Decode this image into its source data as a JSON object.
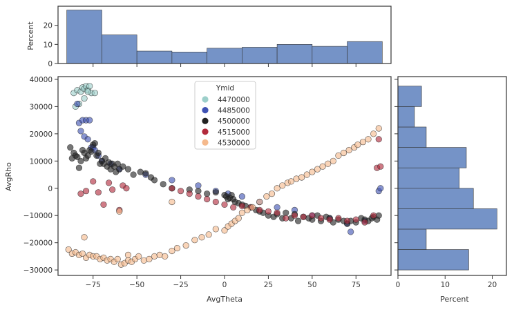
{
  "chart_data": {
    "type": "scatter",
    "joint": {
      "xlabel": "AvgTheta",
      "ylabel": "AvgRho",
      "xlim": [
        -95,
        95
      ],
      "ylim": [
        -32000,
        41000
      ],
      "xticks": [
        -75,
        -50,
        -25,
        0,
        25,
        50,
        75
      ],
      "yticks": [
        -30000,
        -20000,
        -10000,
        0,
        10000,
        20000,
        30000,
        40000
      ],
      "grid": false
    },
    "legend": {
      "title": "Ymid",
      "placement": "top-center",
      "entries": [
        {
          "label": "4470000",
          "color": "#9ccfca"
        },
        {
          "label": "4485000",
          "color": "#3f52b3"
        },
        {
          "label": "4500000",
          "color": "#222222"
        },
        {
          "label": "4515000",
          "color": "#b22a3c"
        },
        {
          "label": "4530000",
          "color": "#f5b98c"
        }
      ]
    },
    "series": [
      {
        "name": "4470000",
        "x": [
          -86,
          -84,
          -82,
          -81,
          -80,
          -79,
          -78,
          -77,
          -76,
          -74,
          -83,
          -85,
          -80,
          -78
        ],
        "y": [
          35000,
          36000,
          35500,
          37000,
          36500,
          37500,
          36000,
          37500,
          35000,
          35000,
          31000,
          30000,
          33000,
          35500
        ]
      },
      {
        "name": "4485000",
        "x": [
          -84,
          -83,
          -82,
          -81,
          -80,
          -79,
          -78,
          -77,
          -76,
          -75,
          -74,
          -72,
          -70,
          -65,
          -60,
          -45,
          -30,
          -15,
          -5,
          2,
          10,
          20,
          30,
          40,
          50,
          60,
          70,
          72,
          80,
          88,
          89
        ],
        "y": [
          31000,
          24000,
          21000,
          25000,
          19000,
          25000,
          18000,
          25000,
          15000,
          15000,
          14000,
          12000,
          10000,
          9000,
          7000,
          5000,
          3000,
          1000,
          -1000,
          -2000,
          -3000,
          -5000,
          -7000,
          -8000,
          -10000,
          -11000,
          -13000,
          -16000,
          -12000,
          -1000,
          0
        ]
      },
      {
        "name": "4500000",
        "x": [
          -88,
          -87,
          -86,
          -85,
          -84,
          -83,
          -82,
          -81,
          -80,
          -79,
          -78,
          -77,
          -76,
          -75,
          -74,
          -73,
          -72,
          -71,
          -70,
          -69,
          -68,
          -67,
          -66,
          -65,
          -64,
          -63,
          -62,
          -61,
          -60,
          -58,
          -55,
          -52,
          -48,
          -45,
          -42,
          -40,
          -35,
          -30,
          -20,
          -15,
          -10,
          -5,
          0,
          1,
          2,
          3,
          4,
          5,
          6,
          8,
          10,
          12,
          15,
          18,
          20,
          22,
          25,
          28,
          30,
          33,
          35,
          38,
          40,
          42,
          45,
          48,
          50,
          53,
          55,
          58,
          60,
          62,
          65,
          68,
          70,
          72,
          75,
          78,
          80,
          82,
          84,
          85,
          87,
          88
        ],
        "y": [
          15000,
          11000,
          13000,
          12000,
          11500,
          7500,
          10000,
          14000,
          13000,
          11000,
          12000,
          14000,
          13500,
          16000,
          16500,
          12000,
          13000,
          9000,
          10000,
          9000,
          11000,
          8000,
          9500,
          7000,
          9000,
          8000,
          6000,
          9000,
          7000,
          8000,
          7000,
          5000,
          6000,
          5500,
          4000,
          3000,
          1500,
          0,
          -500,
          -1000,
          -2000,
          -1500,
          -2500,
          -3000,
          -4000,
          -3500,
          -2500,
          -4000,
          -5000,
          -5500,
          -6000,
          -6500,
          -7000,
          -8000,
          -8500,
          -9000,
          -10000,
          -10500,
          -9500,
          -11000,
          -9000,
          -11000,
          -9500,
          -12000,
          -10500,
          -11000,
          -11500,
          -10000,
          -12000,
          -10500,
          -11000,
          -12500,
          -11500,
          -12000,
          -13000,
          -12000,
          -12500,
          -11000,
          -11500,
          -12000,
          -11000,
          -10500,
          -11500,
          -10000
        ]
      },
      {
        "name": "4515000",
        "x": [
          -82,
          -79,
          -75,
          -72,
          -69,
          -66,
          -64,
          -60,
          -58,
          -56,
          -30,
          -25,
          -20,
          -15,
          -10,
          -5,
          0,
          5,
          10,
          15,
          20,
          25,
          30,
          35,
          40,
          45,
          50,
          55,
          60,
          65,
          70,
          75,
          80,
          85,
          87,
          88,
          89
        ],
        "y": [
          -2000,
          -1000,
          2500,
          -1500,
          -6000,
          2000,
          -500,
          -8000,
          1000,
          0,
          0,
          -1000,
          -2000,
          -3000,
          -4000,
          -5000,
          -6000,
          -7000,
          -6500,
          -7000,
          -8000,
          -8500,
          -9000,
          -11000,
          -10000,
          -10500,
          -10000,
          -11000,
          -11500,
          -11000,
          -12000,
          -11500,
          -12500,
          -10000,
          7500,
          18000,
          8000
        ]
      },
      {
        "name": "4530000",
        "x": [
          -89,
          -87,
          -85,
          -83,
          -81,
          -79,
          -77,
          -75,
          -73,
          -71,
          -69,
          -67,
          -65,
          -63,
          -61,
          -59,
          -57,
          -55,
          -53,
          -51,
          -49,
          -46,
          -43,
          -40,
          -37,
          -34,
          -30,
          -27,
          -22,
          -17,
          -13,
          -9,
          -5,
          0,
          2,
          4,
          6,
          8,
          10,
          13,
          16,
          20,
          24,
          27,
          30,
          33,
          36,
          38,
          41,
          44,
          47,
          50,
          53,
          56,
          59,
          62,
          65,
          68,
          71,
          74,
          76,
          79,
          82,
          85,
          88,
          -80,
          -60,
          -55,
          -30
        ],
        "y": [
          -22500,
          -24000,
          -23500,
          -24500,
          -24000,
          -25500,
          -24500,
          -25000,
          -25000,
          -26000,
          -25500,
          -26500,
          -26000,
          -27000,
          -26000,
          -28000,
          -27500,
          -26500,
          -27000,
          -26000,
          -25000,
          -26500,
          -26000,
          -25000,
          -24500,
          -25000,
          -23000,
          -22000,
          -21000,
          -19000,
          -18000,
          -17000,
          -15000,
          -15500,
          -14000,
          -13000,
          -12000,
          -11000,
          -9000,
          -8000,
          -7000,
          -5000,
          -3000,
          -2000,
          0,
          1000,
          2000,
          2500,
          3500,
          4000,
          5000,
          6000,
          7000,
          8000,
          9000,
          10000,
          12000,
          13000,
          14000,
          15000,
          16000,
          17000,
          18000,
          20000,
          22000,
          -18000,
          -8500,
          -24500,
          -5000
        ]
      }
    ],
    "marginal_x": {
      "ylabel": "Percent",
      "bin_edges": [
        -90,
        -70,
        -50,
        -30,
        -10,
        10,
        30,
        50,
        70,
        90
      ],
      "values": [
        28,
        15,
        6.5,
        6,
        8,
        8.5,
        10,
        9,
        11.5
      ],
      "ylim": [
        0,
        30
      ],
      "yticks": [
        0,
        10,
        20
      ]
    },
    "marginal_y": {
      "xlabel": "Percent",
      "bin_edges": [
        -30000,
        -22500,
        -15000,
        -7500,
        0,
        7500,
        15000,
        22500,
        30000,
        37500
      ],
      "values": [
        15,
        6,
        21,
        16,
        13,
        14.5,
        6,
        3.5,
        5
      ],
      "xlim": [
        0,
        23
      ],
      "xticks": [
        0,
        10,
        20
      ]
    },
    "colors": {
      "bar_fill": "#7593c7",
      "bar_stroke": "#333333"
    }
  }
}
